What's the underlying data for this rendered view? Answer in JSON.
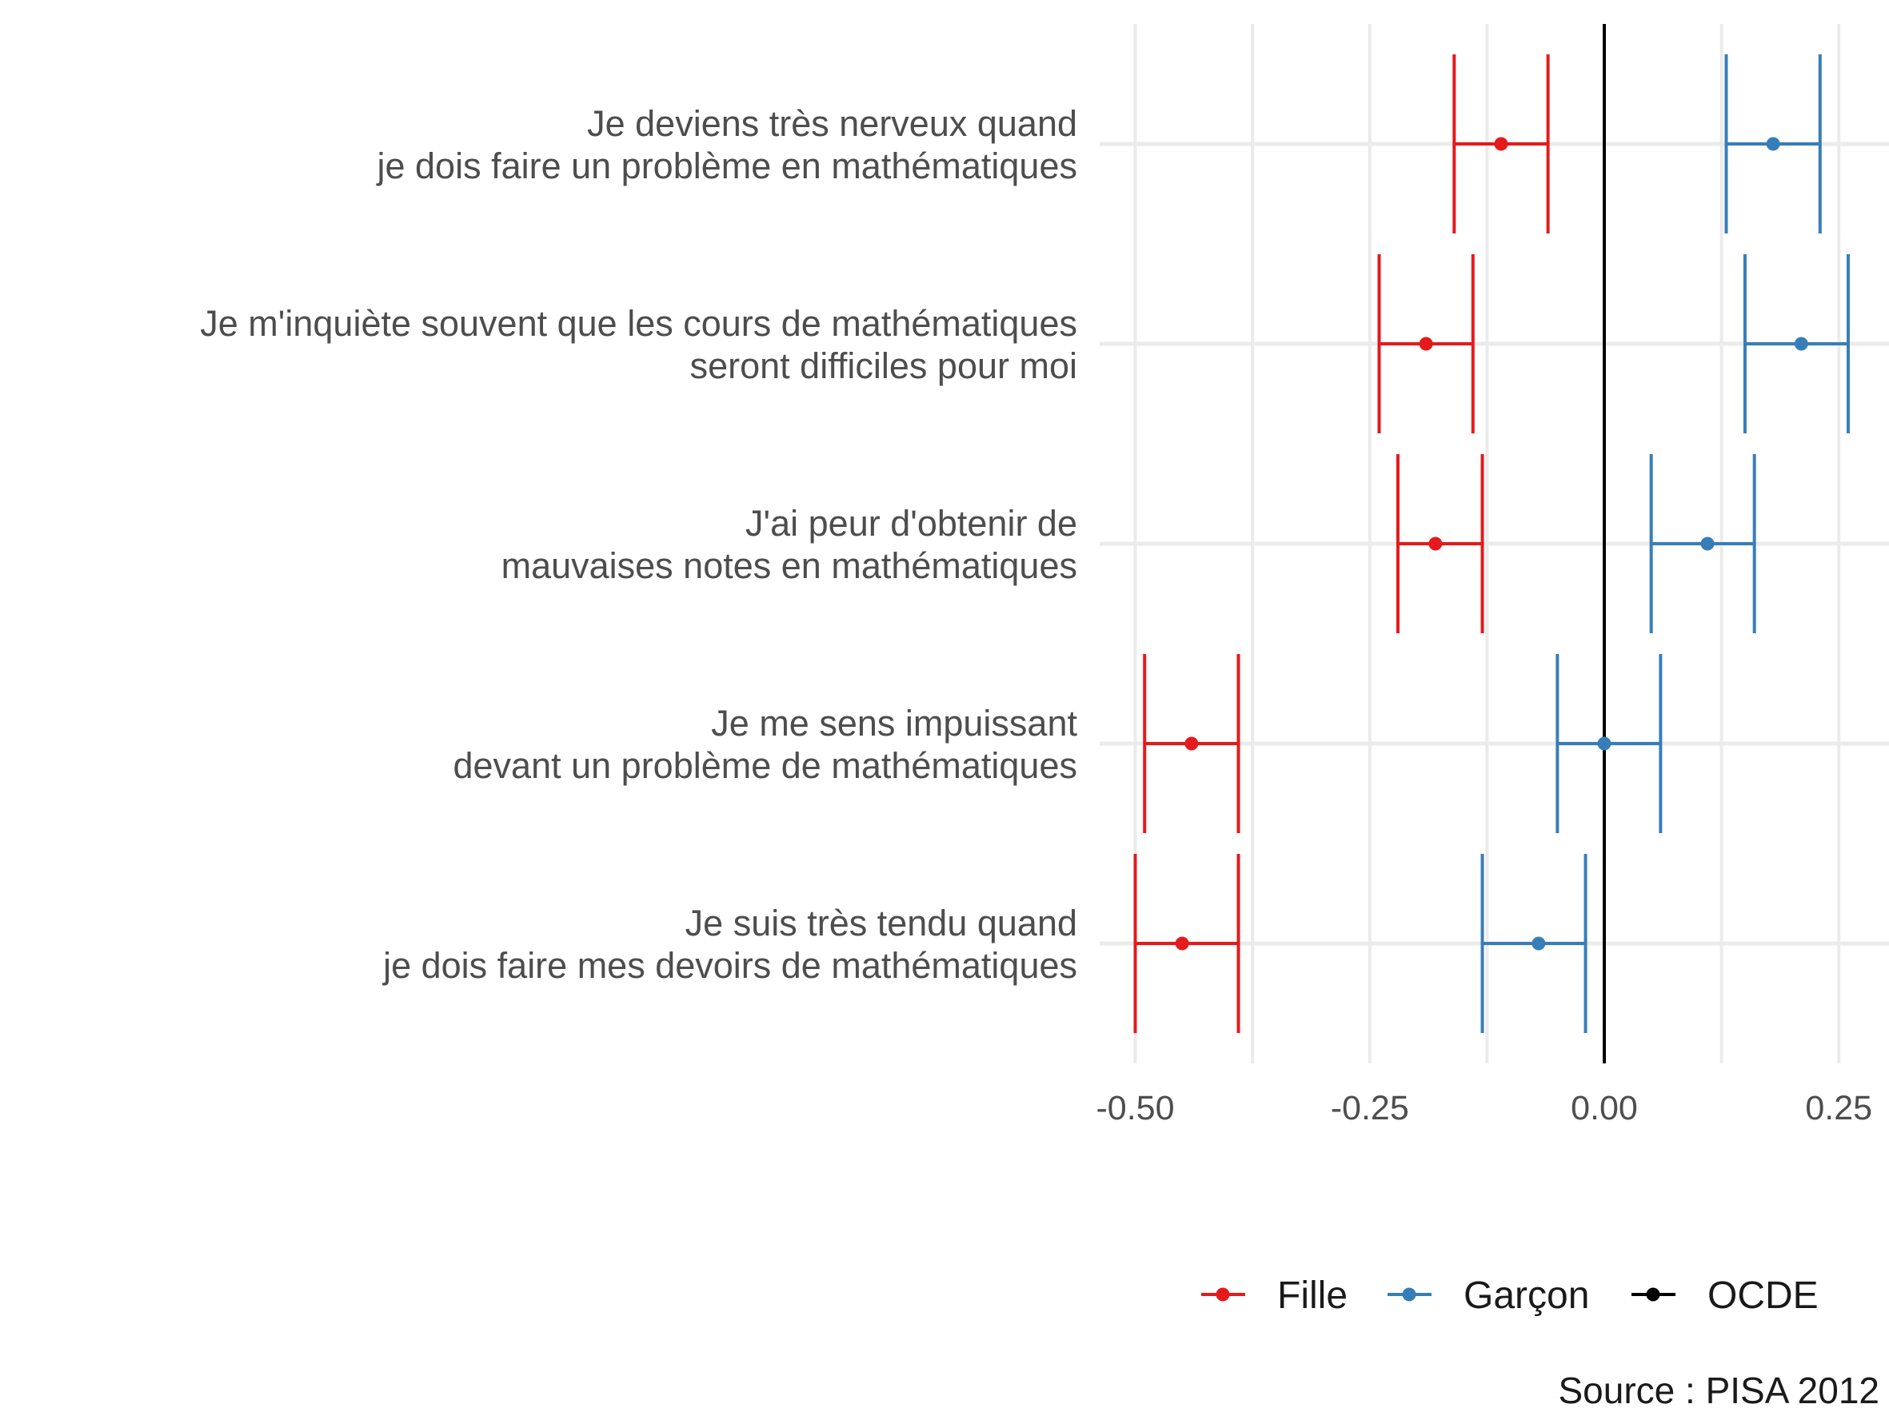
{
  "chart_data": {
    "type": "errorbar",
    "orientation": "horizontal",
    "categories": [
      [
        "Je deviens très nerveux quand",
        "je dois faire un problème en mathématiques"
      ],
      [
        "Je m'inquiète souvent que les cours de mathématiques",
        "seront difficiles pour moi"
      ],
      [
        "J'ai peur d'obtenir de",
        "mauvaises notes en mathématiques"
      ],
      [
        "Je me sens impuissant",
        "devant un problème de mathématiques"
      ],
      [
        "Je suis très tendu quand",
        "je dois faire mes devoirs de mathématiques"
      ]
    ],
    "series": [
      {
        "name": "Fille",
        "color": "#e41a1c",
        "points": [
          {
            "value": -0.11,
            "low": -0.16,
            "high": -0.06
          },
          {
            "value": -0.19,
            "low": -0.24,
            "high": -0.14
          },
          {
            "value": -0.18,
            "low": -0.22,
            "high": -0.13
          },
          {
            "value": -0.44,
            "low": -0.49,
            "high": -0.39
          },
          {
            "value": -0.45,
            "low": -0.5,
            "high": -0.39
          }
        ]
      },
      {
        "name": "Garçon",
        "color": "#377eb8",
        "points": [
          {
            "value": 0.18,
            "low": 0.13,
            "high": 0.23
          },
          {
            "value": 0.21,
            "low": 0.15,
            "high": 0.26
          },
          {
            "value": 0.11,
            "low": 0.05,
            "high": 0.16
          },
          {
            "value": 0.0,
            "low": -0.05,
            "high": 0.06
          },
          {
            "value": -0.07,
            "low": -0.13,
            "high": -0.02
          }
        ]
      },
      {
        "name": "OCDE",
        "color": "#000000",
        "reference_value": 0.0
      }
    ],
    "x_ticks": [
      -0.5,
      -0.25,
      0,
      0.25
    ],
    "x_tick_labels": [
      "-0.50",
      "-0.25",
      "0.00",
      "0.25"
    ],
    "xlim": [
      -0.53,
      0.3
    ],
    "xlabel": "",
    "ylabel": "",
    "grid": true,
    "legend_position": "bottom-right"
  },
  "caption": "Source : PISA 2012"
}
